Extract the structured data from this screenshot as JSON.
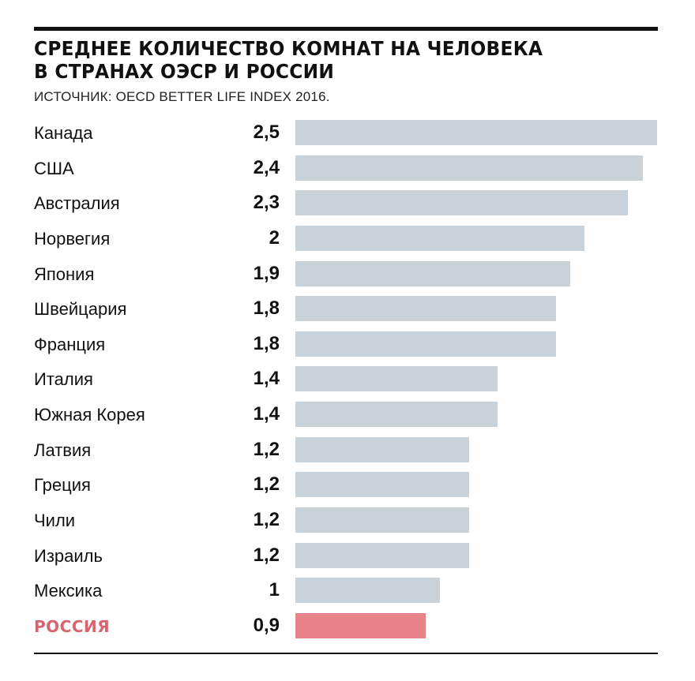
{
  "chart_data": {
    "type": "bar",
    "orientation": "horizontal",
    "title": "СРЕДНЕЕ КОЛИЧЕСТВО КОМНАТ НА ЧЕЛОВЕКА В СТРАНАХ ОЭСР И РОССИИ",
    "title_lines": [
      "СРЕДНЕЕ КОЛИЧЕСТВО КОМНАТ НА ЧЕЛОВЕКА",
      "В СТРАНАХ ОЭСР И РОССИИ"
    ],
    "source": "ИСТОЧНИК: OECD BETTER LIFE INDEX 2016.",
    "categories": [
      "Канада",
      "США",
      "Австралия",
      "Норвегия",
      "Япония",
      "Швейцария",
      "Франция",
      "Италия",
      "Южная Корея",
      "Латвия",
      "Греция",
      "Чили",
      "Израиль",
      "Мексика",
      "РОССИЯ"
    ],
    "values": [
      2.5,
      2.4,
      2.3,
      2.0,
      1.9,
      1.8,
      1.8,
      1.4,
      1.4,
      1.2,
      1.2,
      1.2,
      1.2,
      1.0,
      0.9
    ],
    "value_labels": [
      "2,5",
      "2,4",
      "2,3",
      "2",
      "1,9",
      "1,8",
      "1,8",
      "1,4",
      "1,4",
      "1,2",
      "1,2",
      "1,2",
      "1,2",
      "1",
      "0,9"
    ],
    "highlight": "РОССИЯ",
    "xlim": [
      0,
      2.5
    ],
    "grid": false,
    "colors": {
      "bar": "#c9d2d9",
      "highlight_bar": "#e8838c",
      "highlight_label": "#d9646f"
    }
  }
}
